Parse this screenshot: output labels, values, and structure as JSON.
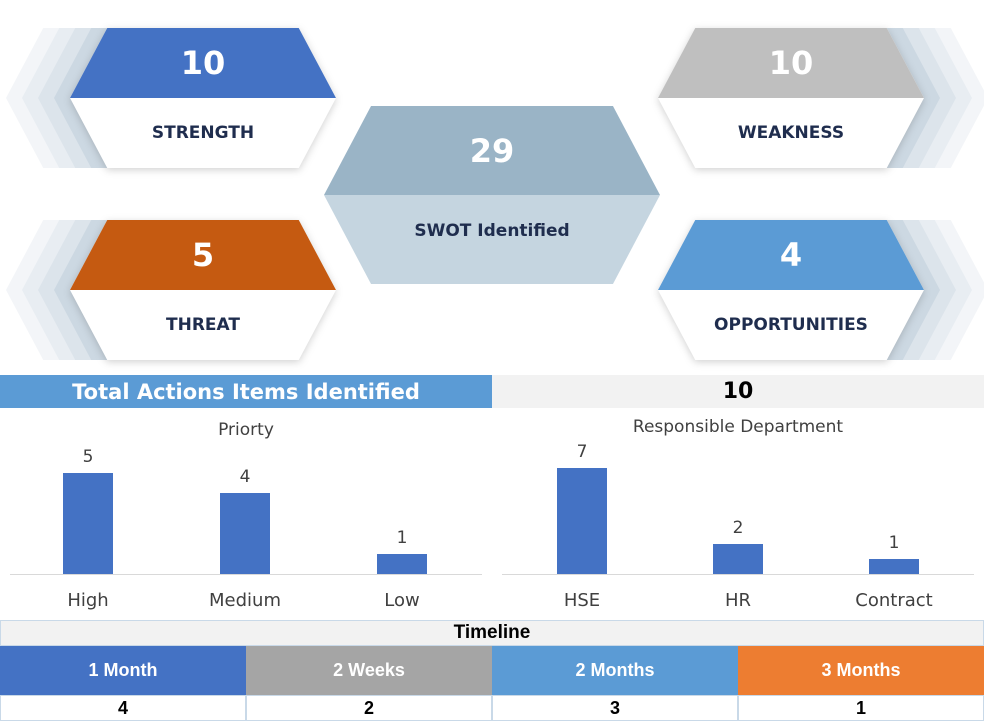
{
  "swot": {
    "strength": {
      "value": "10",
      "label": "STRENGTH",
      "color": "#4472c4"
    },
    "weakness": {
      "value": "10",
      "label": "WEAKNESS",
      "color": "#bfbfbf"
    },
    "threat": {
      "value": "5",
      "label": "THREAT",
      "color": "#c55a11"
    },
    "opportunities": {
      "value": "4",
      "label": "OPPORTUNITIES",
      "color": "#5b9bd5"
    },
    "total": {
      "value": "29",
      "label": "SWOT Identified"
    }
  },
  "actions": {
    "label": "Total Actions Items Identified",
    "value": "10"
  },
  "chart_data": [
    {
      "type": "bar",
      "title": "Priorty",
      "categories": [
        "High",
        "Medium",
        "Low"
      ],
      "values": [
        5,
        4,
        1
      ]
    },
    {
      "type": "bar",
      "title": "Responsible Department",
      "categories": [
        "HSE",
        "HR",
        "Contract"
      ],
      "values": [
        7,
        2,
        1
      ]
    }
  ],
  "timeline": {
    "title": "Timeline",
    "items": [
      {
        "label": "1 Month",
        "value": "4",
        "color": "#4472c4"
      },
      {
        "label": "2 Weeks",
        "value": "2",
        "color": "#a5a5a5"
      },
      {
        "label": "2 Months",
        "value": "3",
        "color": "#5b9bd5"
      },
      {
        "label": "3 Months",
        "value": "1",
        "color": "#ed7d31"
      }
    ]
  }
}
